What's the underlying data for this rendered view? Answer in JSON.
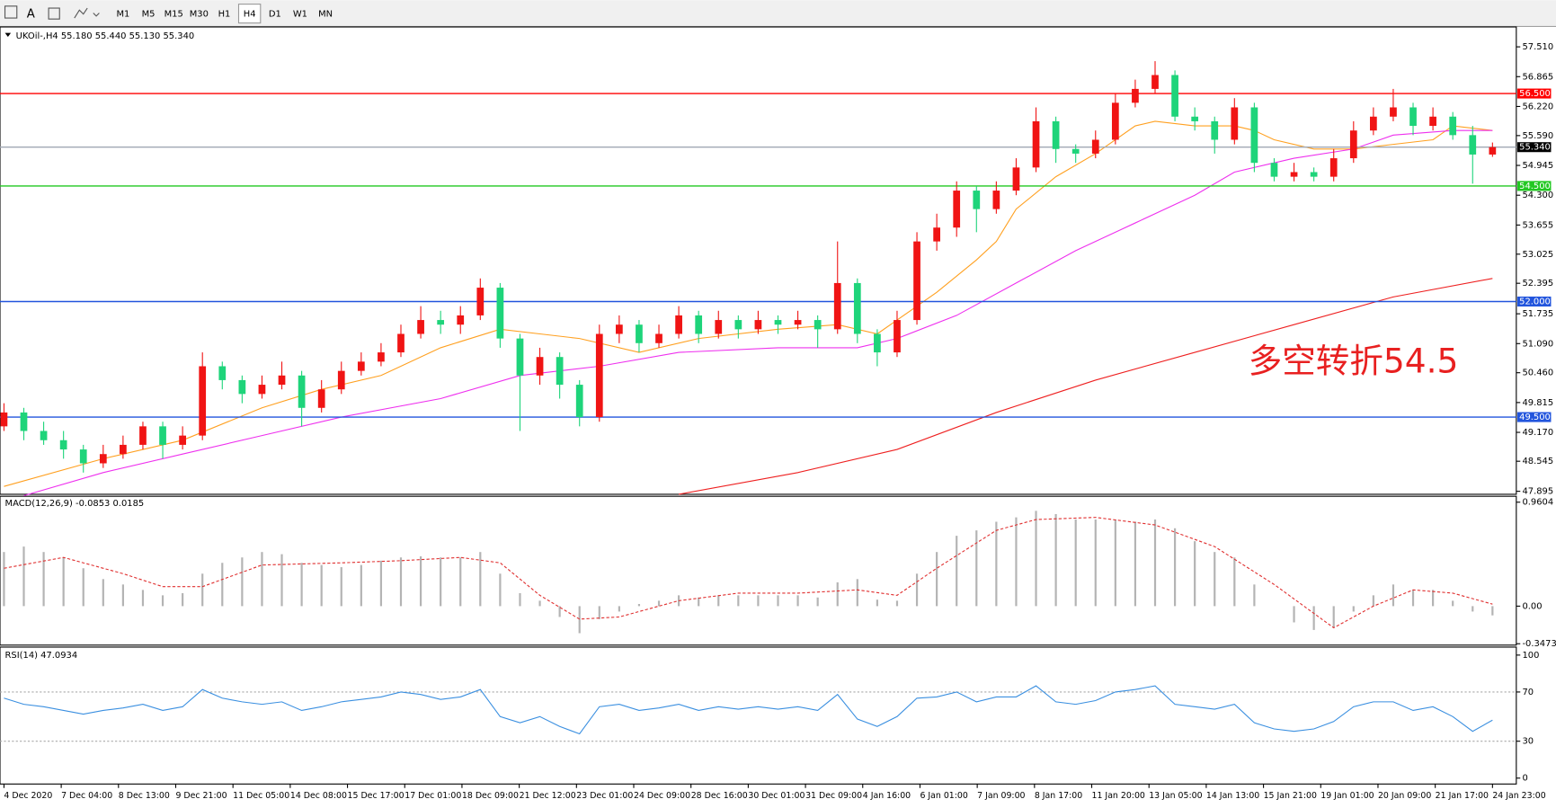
{
  "toolbar": {
    "font_button": "A",
    "timeframes": [
      "M1",
      "M5",
      "M15",
      "M30",
      "H1",
      "H4",
      "D1",
      "W1",
      "MN"
    ],
    "active": "H4"
  },
  "chart_data": {
    "type": "candlestick",
    "title": "UKOil-,H4 55.180 55.440 55.130 55.340",
    "annotation": "多空转折54.5",
    "up_color": "#f01414",
    "down_color": "#1ed47a",
    "ohlc": [
      [
        49.3,
        49.8,
        49.2,
        49.6
      ],
      [
        49.6,
        49.7,
        49.0,
        49.2
      ],
      [
        49.2,
        49.4,
        48.9,
        49.0
      ],
      [
        49.0,
        49.2,
        48.6,
        48.8
      ],
      [
        48.8,
        48.9,
        48.3,
        48.5
      ],
      [
        48.5,
        48.9,
        48.4,
        48.7
      ],
      [
        48.7,
        49.1,
        48.6,
        48.9
      ],
      [
        48.9,
        49.4,
        48.8,
        49.3
      ],
      [
        49.3,
        49.4,
        48.6,
        48.9
      ],
      [
        48.9,
        49.3,
        48.8,
        49.1
      ],
      [
        49.1,
        50.9,
        49.0,
        50.6
      ],
      [
        50.6,
        50.7,
        50.1,
        50.3
      ],
      [
        50.3,
        50.4,
        49.8,
        50.0
      ],
      [
        50.0,
        50.4,
        49.9,
        50.2
      ],
      [
        50.2,
        50.7,
        50.1,
        50.4
      ],
      [
        50.4,
        50.5,
        49.3,
        49.7
      ],
      [
        49.7,
        50.3,
        49.6,
        50.1
      ],
      [
        50.1,
        50.7,
        50.0,
        50.5
      ],
      [
        50.5,
        50.9,
        50.4,
        50.7
      ],
      [
        50.7,
        51.1,
        50.6,
        50.9
      ],
      [
        50.9,
        51.5,
        50.8,
        51.3
      ],
      [
        51.3,
        51.9,
        51.2,
        51.6
      ],
      [
        51.6,
        51.8,
        51.3,
        51.5
      ],
      [
        51.5,
        51.9,
        51.3,
        51.7
      ],
      [
        51.7,
        52.5,
        51.6,
        52.3
      ],
      [
        52.3,
        52.4,
        51.0,
        51.2
      ],
      [
        51.2,
        51.3,
        49.2,
        50.4
      ],
      [
        50.4,
        51.0,
        50.2,
        50.8
      ],
      [
        50.8,
        50.9,
        49.9,
        50.2
      ],
      [
        50.2,
        50.3,
        49.3,
        49.5
      ],
      [
        49.5,
        51.5,
        49.4,
        51.3
      ],
      [
        51.3,
        51.7,
        51.1,
        51.5
      ],
      [
        51.5,
        51.6,
        50.9,
        51.1
      ],
      [
        51.1,
        51.5,
        51.0,
        51.3
      ],
      [
        51.3,
        51.9,
        51.2,
        51.7
      ],
      [
        51.7,
        51.8,
        51.1,
        51.3
      ],
      [
        51.3,
        51.8,
        51.2,
        51.6
      ],
      [
        51.6,
        51.7,
        51.2,
        51.4
      ],
      [
        51.4,
        51.8,
        51.3,
        51.6
      ],
      [
        51.6,
        51.7,
        51.3,
        51.5
      ],
      [
        51.5,
        51.8,
        51.4,
        51.6
      ],
      [
        51.6,
        51.7,
        51.0,
        51.4
      ],
      [
        51.4,
        53.3,
        51.3,
        52.4
      ],
      [
        52.4,
        52.5,
        51.1,
        51.3
      ],
      [
        51.3,
        51.4,
        50.6,
        50.9
      ],
      [
        50.9,
        51.8,
        50.8,
        51.6
      ],
      [
        51.6,
        53.5,
        51.5,
        53.3
      ],
      [
        53.3,
        53.9,
        53.1,
        53.6
      ],
      [
        53.6,
        54.6,
        53.4,
        54.4
      ],
      [
        54.4,
        54.5,
        53.5,
        54.0
      ],
      [
        54.0,
        54.6,
        53.9,
        54.4
      ],
      [
        54.4,
        55.1,
        54.3,
        54.9
      ],
      [
        54.9,
        56.2,
        54.8,
        55.9
      ],
      [
        55.9,
        56.0,
        55.0,
        55.3
      ],
      [
        55.3,
        55.4,
        55.0,
        55.2
      ],
      [
        55.2,
        55.7,
        55.1,
        55.5
      ],
      [
        55.5,
        56.5,
        55.4,
        56.3
      ],
      [
        56.3,
        56.8,
        56.2,
        56.6
      ],
      [
        56.6,
        57.2,
        56.5,
        56.9
      ],
      [
        56.9,
        57.0,
        55.9,
        56.0
      ],
      [
        56.0,
        56.2,
        55.7,
        55.9
      ],
      [
        55.9,
        56.0,
        55.2,
        55.5
      ],
      [
        55.5,
        56.4,
        55.4,
        56.2
      ],
      [
        56.2,
        56.3,
        54.8,
        55.0
      ],
      [
        55.0,
        55.1,
        54.6,
        54.7
      ],
      [
        54.7,
        55.0,
        54.6,
        54.8
      ],
      [
        54.8,
        54.9,
        54.6,
        54.7
      ],
      [
        54.7,
        55.3,
        54.6,
        55.1
      ],
      [
        55.1,
        55.9,
        55.0,
        55.7
      ],
      [
        55.7,
        56.2,
        55.6,
        56.0
      ],
      [
        56.0,
        56.6,
        55.9,
        56.2
      ],
      [
        56.2,
        56.3,
        55.6,
        55.8
      ],
      [
        55.8,
        56.2,
        55.7,
        56.0
      ],
      [
        56.0,
        56.1,
        55.5,
        55.6
      ],
      [
        55.6,
        55.8,
        54.55,
        55.18
      ],
      [
        55.18,
        55.44,
        55.13,
        55.34
      ]
    ],
    "ylim": [
      47.83,
      57.94
    ],
    "yticks": [
      {
        "value": 57.51,
        "label": "57.510"
      },
      56.865,
      {
        "value": 56.22,
        "label": "56.220"
      },
      {
        "value": 55.59,
        "label": "55.590"
      },
      54.945,
      {
        "value": 54.3,
        "label": "54.300"
      },
      53.655,
      53.025,
      52.395,
      51.735,
      {
        "value": 51.09,
        "label": "51.090"
      },
      {
        "value": 50.46,
        "label": "50.460"
      },
      49.815,
      {
        "value": 49.17,
        "label": "49.170"
      },
      48.545,
      47.895
    ],
    "levels": [
      {
        "value": 56.5,
        "label": "56.500",
        "color": "#ff0000",
        "label_color": "#ff0000"
      },
      {
        "value": 55.34,
        "label": "55.340",
        "color": "#a0a8b4",
        "label_color": "#000000"
      },
      {
        "value": 54.5,
        "label": "54.500",
        "color": "#22c822",
        "label_color": "#22c822"
      },
      {
        "value": 52.0,
        "label": "52.000",
        "color": "#2255dd",
        "label_color": "#2255dd"
      },
      {
        "value": 49.5,
        "label": "49.500",
        "color": "#2255dd",
        "label_color": "#2255dd"
      }
    ],
    "moving_averages": [
      {
        "color": "#ffa020",
        "x": [
          0,
          5,
          9,
          13,
          16,
          19,
          22,
          25,
          27,
          29,
          32,
          35,
          39,
          42,
          44,
          45,
          47,
          49,
          50,
          51,
          53,
          55,
          57,
          58,
          60,
          62,
          63,
          64,
          66,
          68,
          70,
          72,
          73,
          75
        ],
        "values": [
          48.0,
          48.6,
          49.0,
          49.7,
          50.1,
          50.4,
          51.0,
          51.4,
          51.3,
          51.2,
          50.9,
          51.2,
          51.4,
          51.5,
          51.3,
          51.6,
          52.2,
          52.9,
          53.3,
          54.0,
          54.7,
          55.2,
          55.8,
          55.9,
          55.8,
          55.8,
          55.7,
          55.5,
          55.3,
          55.3,
          55.4,
          55.5,
          55.8,
          55.7
        ]
      },
      {
        "color": "#ee30ee",
        "x": [
          1,
          5,
          9,
          13,
          17,
          22,
          26,
          30,
          34,
          39,
          43,
          45,
          48,
          51,
          54,
          57,
          60,
          62,
          65,
          68,
          70,
          73,
          75
        ],
        "values": [
          47.8,
          48.3,
          48.7,
          49.1,
          49.5,
          49.9,
          50.4,
          50.6,
          50.9,
          51.0,
          51.0,
          51.2,
          51.7,
          52.4,
          53.1,
          53.7,
          54.3,
          54.8,
          55.1,
          55.3,
          55.6,
          55.7,
          55.7
        ]
      },
      {
        "color": "#ee2020",
        "x": [
          34,
          40,
          45,
          50,
          55,
          60,
          65,
          70,
          75
        ],
        "values": [
          47.83,
          48.3,
          48.8,
          49.6,
          50.3,
          50.9,
          51.5,
          52.1,
          52.5
        ]
      }
    ],
    "x_labels": [
      "4 Dec 2020",
      "7 Dec 04:00",
      "8 Dec 13:00",
      "9 Dec 21:00",
      "11 Dec 05:00",
      "14 Dec 08:00",
      "15 Dec 17:00",
      "17 Dec 01:00",
      "18 Dec 09:00",
      "21 Dec 12:00",
      "23 Dec 01:00",
      "24 Dec 09:00",
      "28 Dec 16:00",
      "30 Dec 01:00",
      "31 Dec 09:00",
      "4 Jan 16:00",
      "6 Jan 01:00",
      "7 Jan 09:00",
      "8 Jan 17:00",
      "11 Jan 20:00",
      "13 Jan 05:00",
      "14 Jan 13:00",
      "15 Jan 21:00",
      "19 Jan 01:00",
      "20 Jan 09:00",
      "21 Jan 17:00",
      "24 Jan 23:00"
    ],
    "macd": {
      "title": "MACD(12,26,9) -0.0853 0.0185",
      "histogram": [
        0.5,
        0.55,
        0.5,
        0.45,
        0.35,
        0.25,
        0.2,
        0.15,
        0.1,
        0.12,
        0.3,
        0.4,
        0.45,
        0.5,
        0.48,
        0.4,
        0.38,
        0.36,
        0.38,
        0.42,
        0.45,
        0.46,
        0.45,
        0.45,
        0.5,
        0.3,
        0.12,
        0.05,
        -0.1,
        -0.25,
        -0.12,
        -0.05,
        0.02,
        0.05,
        0.1,
        0.08,
        0.1,
        0.1,
        0.1,
        0.1,
        0.1,
        0.08,
        0.22,
        0.25,
        0.06,
        0.05,
        0.3,
        0.5,
        0.65,
        0.7,
        0.78,
        0.82,
        0.88,
        0.85,
        0.8,
        0.8,
        0.8,
        0.78,
        0.8,
        0.72,
        0.6,
        0.5,
        0.45,
        0.2,
        0.0,
        -0.15,
        -0.22,
        -0.2,
        -0.05,
        0.1,
        0.2,
        0.15,
        0.15,
        0.05,
        -0.05,
        -0.0853
      ],
      "signal": {
        "x": [
          0,
          3,
          6,
          8,
          10,
          13,
          17,
          20,
          23,
          25,
          27,
          29,
          31,
          34,
          37,
          40,
          43,
          45,
          47,
          50,
          52,
          55,
          58,
          61,
          64,
          67,
          69,
          71,
          73,
          75
        ],
        "values": [
          0.35,
          0.45,
          0.3,
          0.18,
          0.18,
          0.38,
          0.4,
          0.42,
          0.45,
          0.4,
          0.1,
          -0.12,
          -0.1,
          0.05,
          0.12,
          0.12,
          0.15,
          0.1,
          0.35,
          0.7,
          0.8,
          0.82,
          0.75,
          0.55,
          0.2,
          -0.2,
          0.0,
          0.15,
          0.12,
          0.0185
        ]
      },
      "ylim": [
        -0.36,
        1.015
      ],
      "yticks": [
        0.9604,
        {
          "value": 0,
          "label": "0.00"
        },
        -0.3473
      ],
      "hist_color": "#b4b4b4",
      "signal_color": "#e03030"
    },
    "rsi": {
      "title": "RSI(14) 47.0934",
      "values": [
        65,
        60,
        58,
        55,
        52,
        55,
        57,
        60,
        55,
        58,
        72,
        65,
        62,
        60,
        62,
        55,
        58,
        62,
        64,
        66,
        70,
        68,
        64,
        66,
        72,
        50,
        45,
        50,
        42,
        36,
        58,
        60,
        55,
        57,
        60,
        55,
        58,
        56,
        58,
        56,
        58,
        55,
        68,
        48,
        42,
        50,
        65,
        66,
        70,
        62,
        66,
        66,
        75,
        62,
        60,
        63,
        70,
        72,
        75,
        60,
        58,
        56,
        60,
        45,
        40,
        38,
        40,
        46,
        58,
        62,
        62,
        55,
        58,
        50,
        38,
        47.0934
      ],
      "ylim": [
        -4.8,
        106.5
      ],
      "yticks": [
        100,
        70,
        30,
        0
      ],
      "levels": [
        70,
        30
      ],
      "color": "#3a8fe0"
    }
  }
}
